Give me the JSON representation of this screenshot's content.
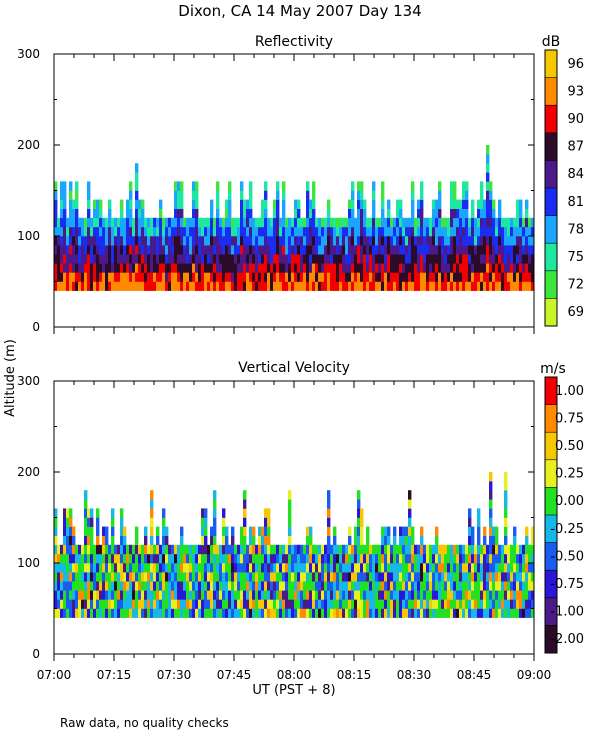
{
  "figure": {
    "title": "Dixon, CA 14 May 2007  Day 134",
    "ylabel": "Altitude (m)",
    "xlabel": "UT  (PST + 8)",
    "footnote": "Raw data, no quality checks"
  },
  "chart_data": [
    {
      "type": "heatmap",
      "title": "Reflectivity",
      "units_label": "dB",
      "x_range_minutes": [
        0,
        120
      ],
      "ylim": [
        0,
        300
      ],
      "y_ticks": [
        0,
        100,
        200,
        300
      ],
      "y_tick_labels": [
        "0",
        "100",
        "200",
        "300"
      ],
      "colorbar": {
        "tick_labels": [
          "96",
          "93",
          "90",
          "87",
          "84",
          "81",
          "78",
          "75",
          "72",
          "69"
        ],
        "colors": [
          "#f6c800",
          "#ff8a00",
          "#f20000",
          "#2b0b28",
          "#4a1a8a",
          "#1a2cf0",
          "#1aa6ff",
          "#1ee8a0",
          "#3de63d",
          "#c7f52a"
        ],
        "range": [
          69,
          96
        ]
      },
      "data_extent": {
        "bottom_m": 40,
        "typical_top_m": 120,
        "max_top_m": 200
      }
    },
    {
      "type": "heatmap",
      "title": "Vertical Velocity",
      "units_label": "m/s",
      "x_range_minutes": [
        0,
        120
      ],
      "ylim": [
        0,
        300
      ],
      "y_ticks": [
        0,
        100,
        200,
        300
      ],
      "y_tick_labels": [
        "0",
        "100",
        "200",
        "300"
      ],
      "x_tick_labels": [
        "07:00",
        "07:15",
        "07:30",
        "07:45",
        "08:00",
        "08:15",
        "08:30",
        "08:45",
        "09:00"
      ],
      "colorbar": {
        "tick_labels": [
          "1.00",
          "0.75",
          "0.50",
          "0.25",
          "0.00",
          "-0.25",
          "-0.50",
          "-0.75",
          "-1.00",
          "-2.00"
        ],
        "colors": [
          "#f20000",
          "#ff8a00",
          "#f6c800",
          "#e8f020",
          "#22e022",
          "#16b8e8",
          "#1a5cf0",
          "#2a16d8",
          "#4a1a8a",
          "#2b0b28"
        ],
        "range": [
          -2.0,
          1.0
        ]
      },
      "data_extent": {
        "bottom_m": 40,
        "typical_top_m": 120,
        "max_top_m": 200
      }
    }
  ]
}
